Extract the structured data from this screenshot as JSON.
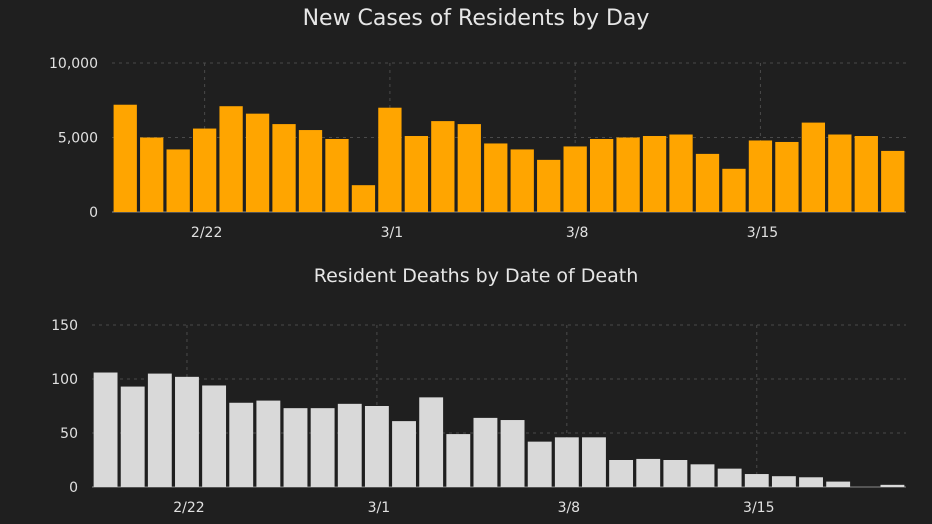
{
  "chart_data": [
    {
      "type": "bar",
      "title": "New Cases of Residents by Day",
      "xlabel": "",
      "ylabel": "",
      "ylim": [
        0,
        10000
      ],
      "yticks": [
        0,
        5000,
        10000
      ],
      "ytick_labels": [
        "0",
        "5,000",
        "10,000"
      ],
      "xtick_labels": [
        {
          "label": "2/22",
          "index": 3.5
        },
        {
          "label": "3/1",
          "index": 10.5
        },
        {
          "label": "3/8",
          "index": 17.5
        },
        {
          "label": "3/15",
          "index": 24.5
        }
      ],
      "grid": true,
      "color": "#ffa500",
      "values": [
        7200,
        5000,
        4200,
        5600,
        7100,
        6600,
        5900,
        5500,
        4900,
        1800,
        7000,
        5100,
        6100,
        5900,
        4600,
        4200,
        3500,
        4400,
        4900,
        5000,
        5100,
        5200,
        3900,
        2900,
        4800,
        4700,
        6000,
        5200,
        5100,
        4100
      ]
    },
    {
      "type": "bar",
      "title": "Resident Deaths by Date of Death",
      "xlabel": "",
      "ylabel": "",
      "ylim": [
        0,
        150
      ],
      "yticks": [
        0,
        50,
        100,
        150
      ],
      "ytick_labels": [
        "0",
        "50",
        "100",
        "150"
      ],
      "xtick_labels": [
        {
          "label": "2/22",
          "index": 3.5
        },
        {
          "label": "3/1",
          "index": 10.5
        },
        {
          "label": "3/8",
          "index": 17.5
        },
        {
          "label": "3/15",
          "index": 24.5
        }
      ],
      "grid": true,
      "color": "#d9d9d9",
      "values": [
        106,
        93,
        105,
        102,
        94,
        78,
        80,
        73,
        73,
        77,
        75,
        61,
        83,
        49,
        64,
        62,
        42,
        46,
        46,
        25,
        26,
        25,
        21,
        17,
        12,
        10,
        9,
        5,
        0,
        2
      ]
    }
  ]
}
